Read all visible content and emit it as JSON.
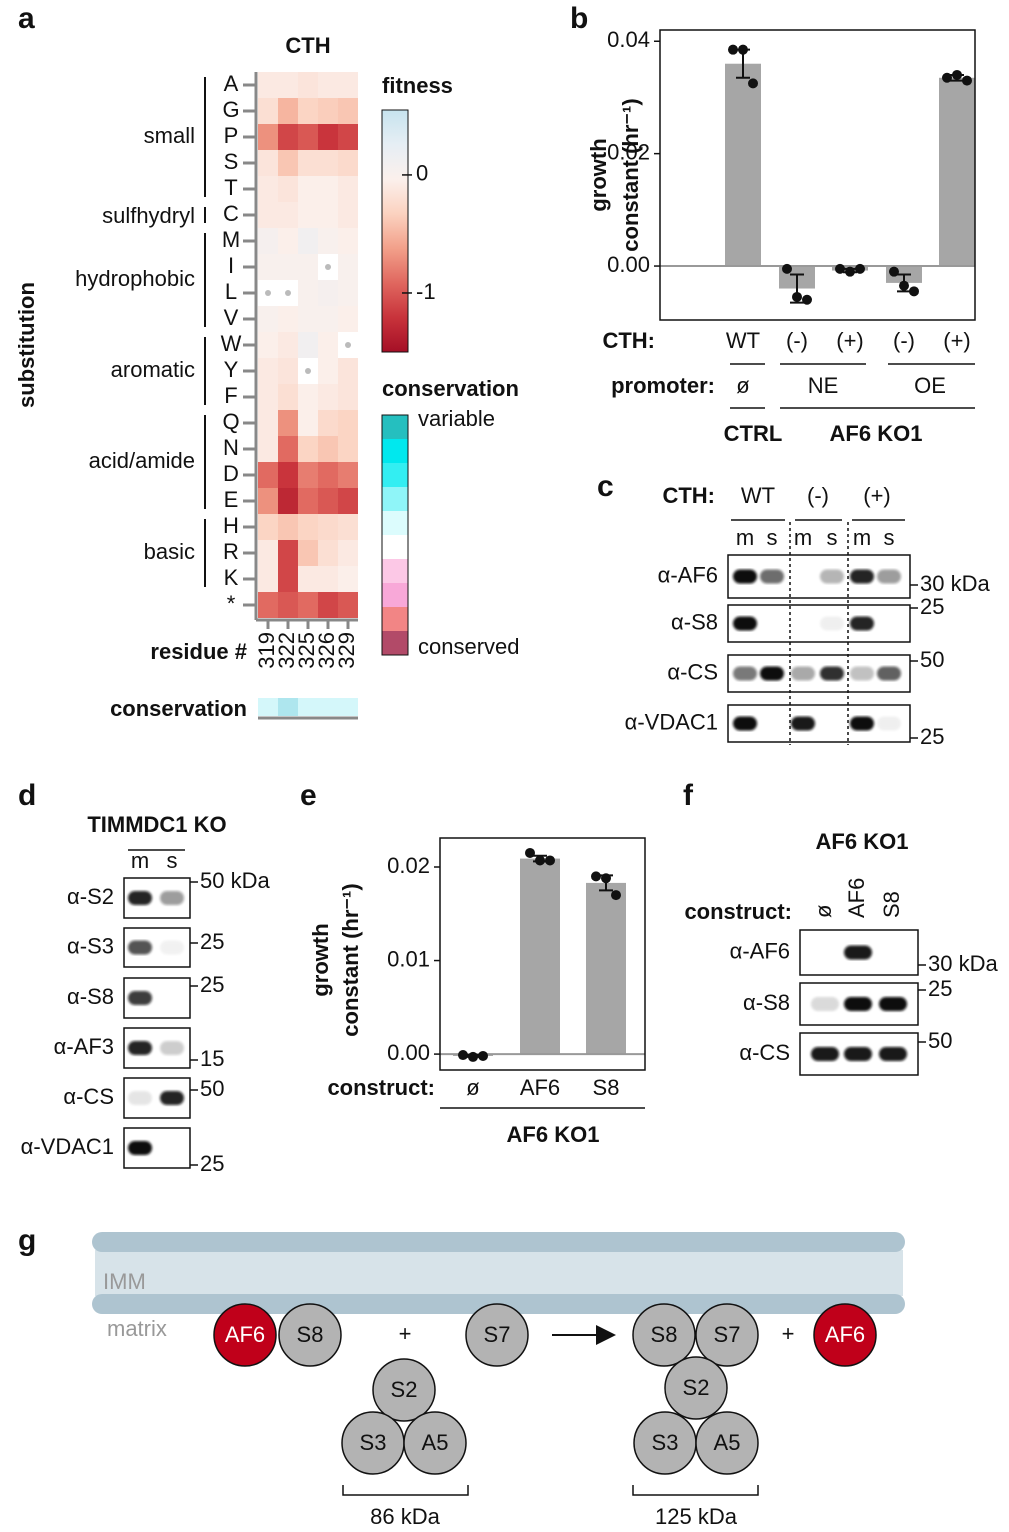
{
  "panels": [
    "a",
    "b",
    "c",
    "d",
    "e",
    "f",
    "g"
  ],
  "chart_data": [
    {
      "type": "heatmap",
      "title": "CTH",
      "y_label": "substitution",
      "x_label": "residue #",
      "rows": [
        "A",
        "G",
        "P",
        "S",
        "T",
        "C",
        "M",
        "I",
        "L",
        "V",
        "W",
        "Y",
        "F",
        "Q",
        "N",
        "D",
        "E",
        "H",
        "R",
        "K",
        "*"
      ],
      "columns": [
        "319",
        "322",
        "325",
        "326",
        "329"
      ],
      "groups": [
        {
          "name": "small",
          "rows": [
            "A",
            "G",
            "P",
            "S",
            "T"
          ]
        },
        {
          "name": "sulfhydryl",
          "rows": [
            "C"
          ]
        },
        {
          "name": "hydrophobic",
          "rows": [
            "M",
            "I",
            "L",
            "V"
          ]
        },
        {
          "name": "aromatic",
          "rows": [
            "W",
            "Y",
            "F"
          ]
        },
        {
          "name": "acid/amide",
          "rows": [
            "Q",
            "N",
            "D",
            "E"
          ]
        },
        {
          "name": "basic",
          "rows": [
            "H",
            "R",
            "K"
          ]
        }
      ],
      "values": [
        [
          -0.1,
          -0.1,
          -0.15,
          -0.1,
          -0.1
        ],
        [
          -0.2,
          -0.5,
          -0.3,
          -0.35,
          -0.4
        ],
        [
          -0.7,
          -1.1,
          -1.0,
          -1.2,
          -1.1
        ],
        [
          -0.15,
          -0.4,
          -0.2,
          -0.2,
          -0.25
        ],
        [
          -0.1,
          -0.15,
          -0.05,
          -0.05,
          -0.1
        ],
        [
          -0.1,
          -0.1,
          -0.05,
          -0.05,
          -0.1
        ],
        [
          0.05,
          -0.05,
          0.1,
          0,
          -0.05
        ],
        [
          0,
          0,
          0,
          null,
          0
        ],
        [
          null,
          null,
          0,
          0.05,
          0
        ],
        [
          0,
          -0.05,
          0,
          0,
          -0.05
        ],
        [
          -0.05,
          -0.1,
          0.1,
          -0.05,
          null
        ],
        [
          -0.1,
          -0.15,
          null,
          -0.05,
          -0.15
        ],
        [
          -0.1,
          -0.2,
          -0.05,
          -0.1,
          -0.15
        ],
        [
          -0.1,
          -0.7,
          -0.05,
          -0.25,
          -0.3
        ],
        [
          -0.1,
          -0.9,
          -0.3,
          -0.4,
          -0.3
        ],
        [
          -0.9,
          -1.2,
          -0.8,
          -0.9,
          -0.8
        ],
        [
          -0.7,
          -1.3,
          -0.9,
          -1.0,
          -1.1
        ],
        [
          -0.3,
          -0.4,
          -0.3,
          -0.25,
          -0.2
        ],
        [
          -0.1,
          -1.1,
          -0.4,
          -0.2,
          -0.1
        ],
        [
          -0.1,
          -1.1,
          -0.1,
          -0.1,
          -0.05
        ],
        [
          -0.9,
          -1.0,
          -0.9,
          -1.1,
          -1.0
        ]
      ],
      "colorbar": {
        "title": "fitness",
        "zlim": [
          -1.5,
          0.55
        ],
        "ticks": [
          0,
          -1
        ],
        "colors": [
          "#a50f26",
          "#c8333b",
          "#e0675f",
          "#f2a08a",
          "#fbd2c0",
          "#fbf0ec",
          "#e6eef4",
          "#c7e3ee"
        ]
      },
      "conservation": {
        "title": "conservation",
        "row_label": "conservation",
        "top_label": "variable",
        "bottom_label": "conserved",
        "colors": [
          "#25bfbf",
          "#00e8ee",
          "#33eef2",
          "#8ff5f8",
          "#dcfcfd",
          "#ffffff",
          "#fcc8e6",
          "#f8a8d8",
          "#f28585",
          "#b24a68"
        ],
        "column_colors": [
          "#d4f7fa",
          "#aee6ee",
          "#d4f7fa",
          "#d4f7fa",
          "#d4f7fa"
        ]
      }
    },
    {
      "type": "bar",
      "y_label": [
        "growth",
        "constant (hr⁻¹)"
      ],
      "category_label": "CTH:",
      "categories": [
        "WT",
        "(-)",
        "(+)",
        "(-)",
        "(+)"
      ],
      "values": [
        0.036,
        -0.004,
        -0.0008,
        -0.003,
        0.0335
      ],
      "errors": [
        0.0025,
        0.0025,
        0.0003,
        0.0015,
        0.0005
      ],
      "points": [
        [
          0.0385,
          0.0385,
          0.0325
        ],
        [
          -0.0005,
          -0.0055,
          -0.006
        ],
        [
          -0.0005,
          -0.001,
          -0.0005
        ],
        [
          -0.001,
          -0.0035,
          -0.0045
        ],
        [
          0.0335,
          0.034,
          0.033
        ]
      ],
      "color": "#a6a6a6",
      "ylim": [
        -0.0096,
        0.042
      ],
      "yticks": [
        {
          "value": 0,
          "label": "0.00"
        },
        0.02,
        0.04
      ],
      "promoter": {
        "label": "promoter:",
        "groups": [
          "ø",
          "NE",
          "OE"
        ]
      },
      "groups": [
        "CTRL",
        "AF6 KO1"
      ]
    },
    {
      "type": "bar",
      "y_label": [
        "growth",
        "constant (hr⁻¹)"
      ],
      "category_label": "construct:",
      "categories": [
        "ø",
        "AF6",
        "S8"
      ],
      "values": [
        -0.0002,
        0.0209,
        0.0183
      ],
      "errors": [
        0.0001,
        0.0003,
        0.0008
      ],
      "points": [
        [
          -0.0001,
          -0.0003,
          -0.0002
        ],
        [
          0.0215,
          0.0207,
          0.0207
        ],
        [
          0.019,
          0.0188,
          0.017
        ]
      ],
      "color": "#a6a6a6",
      "ylim": [
        -0.0017,
        0.0231
      ],
      "yticks": [
        {
          "value": 0,
          "label": "0.00"
        },
        0.01,
        0.02
      ],
      "groups": [
        "AF6 KO1"
      ]
    }
  ],
  "blots": [
    {
      "header_label": "CTH:",
      "header": [
        "WT",
        "(-)",
        "(+)"
      ],
      "lanes": [
        "m",
        "s",
        "m",
        "s",
        "m",
        "s"
      ],
      "rows": [
        {
          "label": "α-AF6",
          "marker": "30 kDa"
        },
        {
          "label": "α-S8",
          "marker": "25"
        },
        {
          "label": "α-CS",
          "marker": "50"
        },
        {
          "label": "α-VDAC1",
          "marker": "25"
        }
      ]
    },
    {
      "title": "TIMMDC1 KO",
      "lanes": [
        "m",
        "s"
      ],
      "rows": [
        {
          "label": "α-S2",
          "marker": "50 kDa"
        },
        {
          "label": "α-S3",
          "marker": "25"
        },
        {
          "label": "α-S8",
          "marker": "25"
        },
        {
          "label": "α-AF3",
          "marker": "15"
        },
        {
          "label": "α-CS",
          "marker": "50"
        },
        {
          "label": "α-VDAC1",
          "marker": "25"
        }
      ]
    },
    {
      "title": "AF6 KO1",
      "header_label": "construct:",
      "lanes": [
        "ø",
        "AF6",
        "S8"
      ],
      "rows": [
        {
          "label": "α-AF6",
          "marker": "30 kDa"
        },
        {
          "label": "α-S8",
          "marker": "25"
        },
        {
          "label": "α-CS",
          "marker": "50"
        }
      ]
    }
  ],
  "diagram": {
    "membrane": "IMM",
    "matrix": "matrix",
    "nodes": [
      {
        "label": "AF6",
        "color": "#c0001a"
      },
      {
        "label": "S8",
        "color": "#b3b3b3"
      },
      {
        "label": "S7",
        "color": "#b3b3b3"
      },
      {
        "label": "S2",
        "color": "#b3b3b3"
      },
      {
        "label": "S3",
        "color": "#b3b3b3"
      },
      {
        "label": "A5",
        "color": "#b3b3b3"
      },
      {
        "label": "S8",
        "color": "#b3b3b3"
      },
      {
        "label": "S7",
        "color": "#b3b3b3"
      },
      {
        "label": "S2",
        "color": "#b3b3b3"
      },
      {
        "label": "S3",
        "color": "#b3b3b3"
      },
      {
        "label": "A5",
        "color": "#b3b3b3"
      },
      {
        "label": "AF6",
        "color": "#c0001a"
      }
    ],
    "operators": [
      "+",
      "+"
    ],
    "sizes": [
      "86 kDa",
      "125 kDa"
    ]
  }
}
